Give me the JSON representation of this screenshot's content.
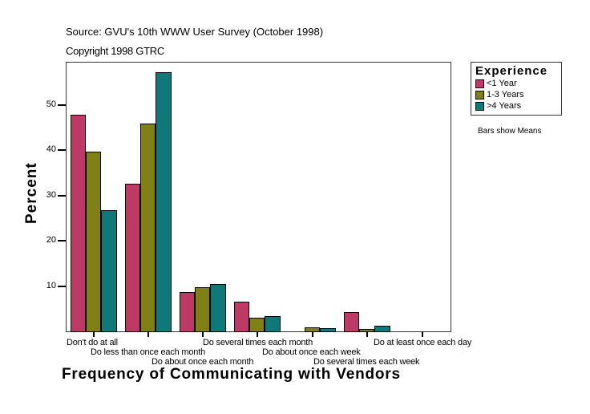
{
  "header": {
    "source": "Source: GVU's 10th WWW User Survey (October 1998)",
    "copyright": "Copyright 1998 GTRC"
  },
  "legend": {
    "title": "Experience",
    "items": [
      {
        "label": "<1 Year",
        "color": "#BD3A67"
      },
      {
        "label": "1-3 Years",
        "color": "#808016"
      },
      {
        "label": ">4 Years",
        "color": "#0F7878"
      }
    ],
    "note": "Bars show Means"
  },
  "axes": {
    "ylabel": "Percent",
    "xlabel": "Frequency of Communicating with Vendors",
    "yticks": [
      "10",
      "20",
      "30",
      "40",
      "50"
    ]
  },
  "chart_data": {
    "type": "bar",
    "title": "Frequency of Communicating with Vendors",
    "subtitle": "Source: GVU's 10th WWW User Survey (October 1998) / Copyright 1998 GTRC",
    "xlabel": "Frequency of Communicating with Vendors",
    "ylabel": "Percent",
    "ylim": [
      0,
      59
    ],
    "yticks": [
      10,
      20,
      30,
      40,
      50
    ],
    "grid": false,
    "legend_position": "right",
    "legend_title": "Experience",
    "annotations": [
      "Bars show Means"
    ],
    "categories": [
      "Don't do at all",
      "Do less than once each month",
      "Do about once each month",
      "Do several times each month",
      "Do about once each week",
      "Do several times each week",
      "Do at least once each day"
    ],
    "series": [
      {
        "name": "<1 Year",
        "color": "#BD3A67",
        "values": [
          47.8,
          32.6,
          8.7,
          6.5,
          0.0,
          4.2,
          0.0
        ]
      },
      {
        "name": "1-3 Years",
        "color": "#808016",
        "values": [
          39.6,
          45.8,
          9.7,
          3.0,
          0.9,
          0.5,
          0.0
        ]
      },
      {
        "name": ">4 Years",
        "color": "#0F7878",
        "values": [
          26.7,
          57.2,
          10.4,
          3.4,
          0.7,
          1.2,
          0.0
        ]
      }
    ]
  }
}
